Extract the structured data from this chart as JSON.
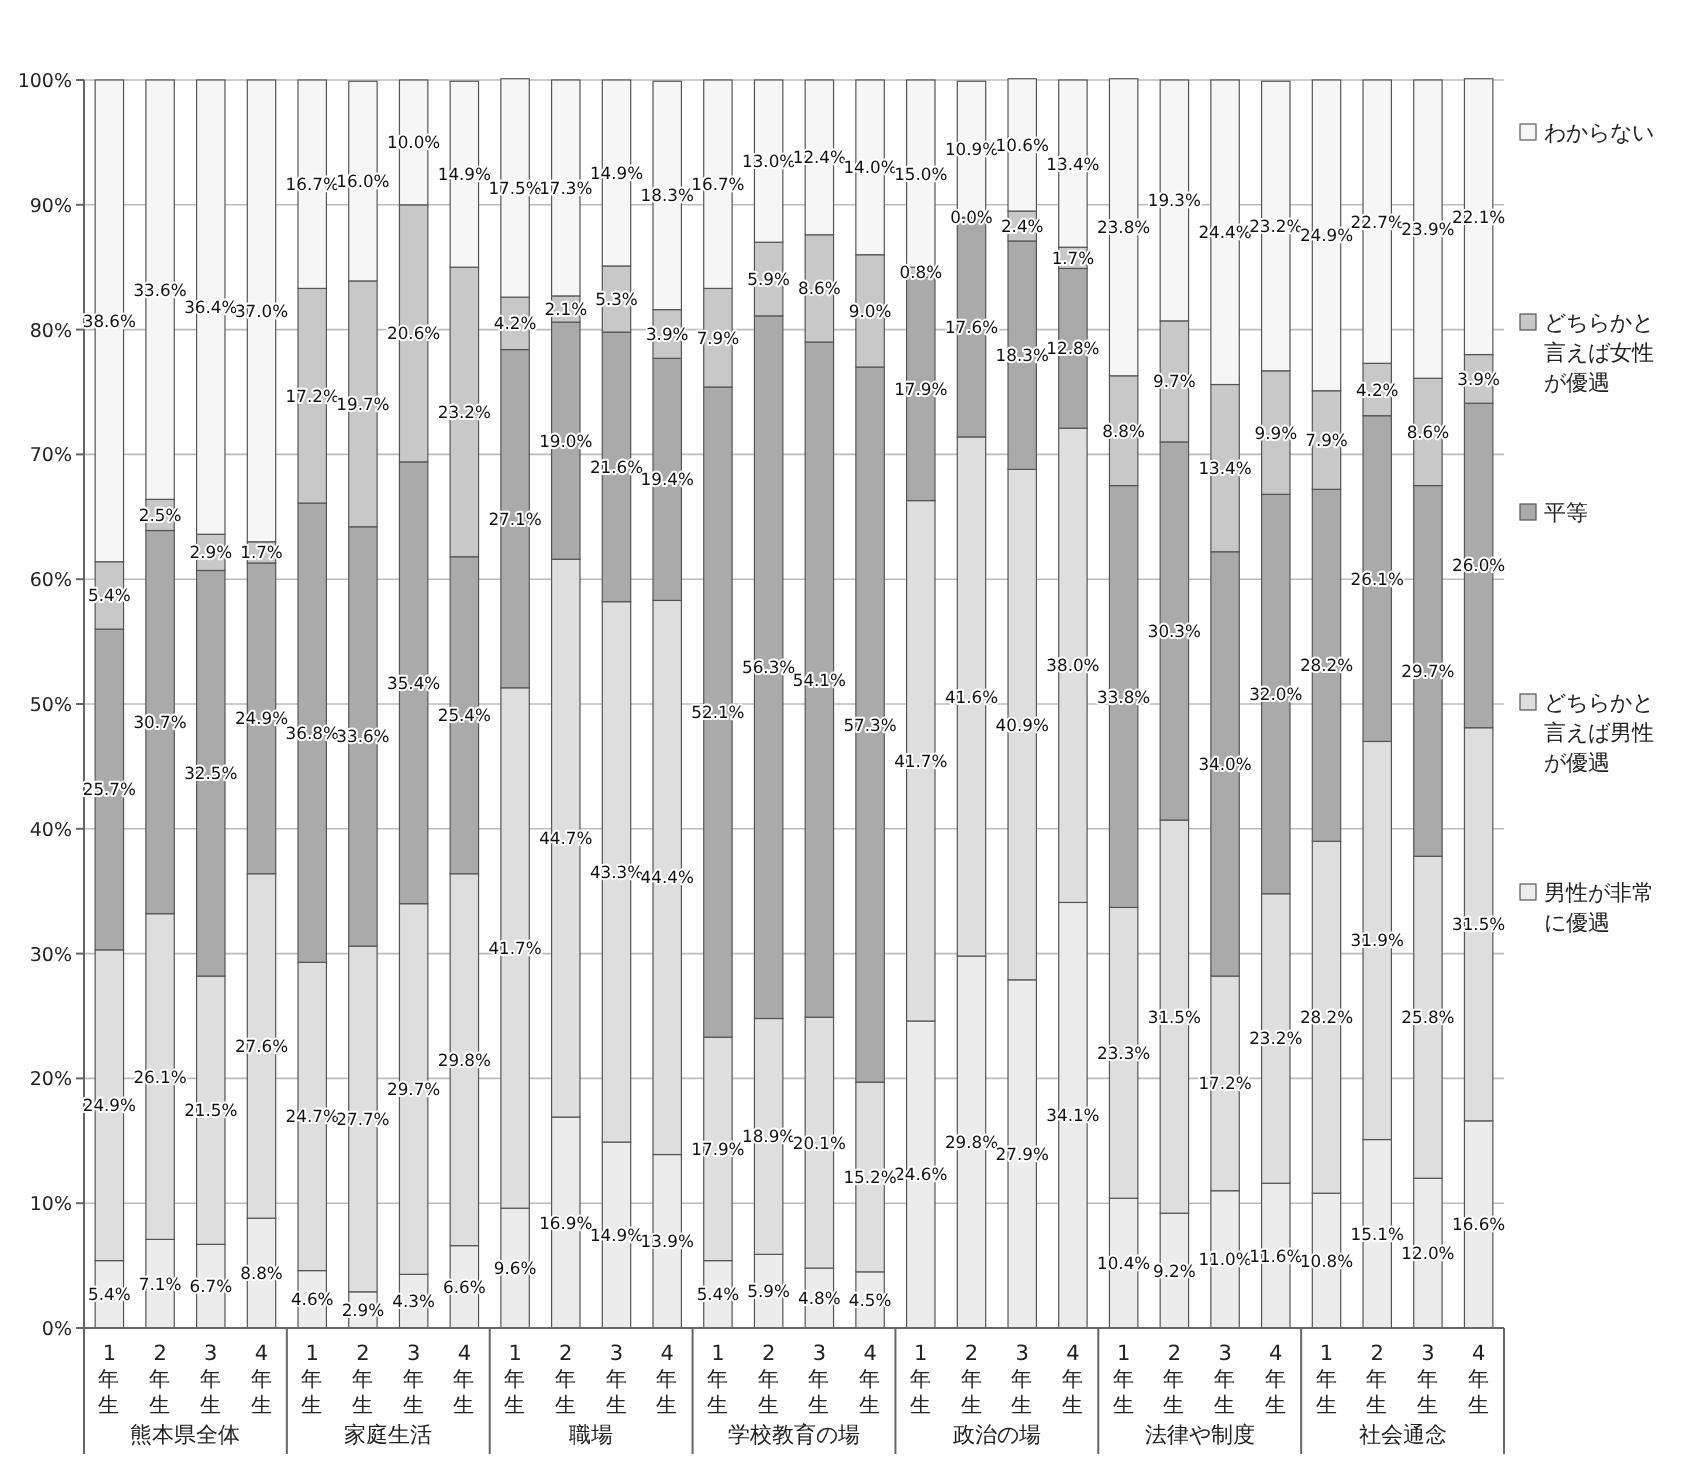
{
  "chart_data": {
    "type": "bar",
    "stacked": true,
    "legend": "right",
    "grid": "y",
    "categories": [
      "1年生",
      "2年生",
      "3年生",
      "4年生",
      "1年生",
      "2年生",
      "3年生",
      "4年生",
      "1年生",
      "2年生",
      "3年生",
      "4年生",
      "1年生",
      "2年生",
      "3年生",
      "4年生",
      "1年生",
      "2年生",
      "3年生",
      "4年生",
      "1年生",
      "2年生",
      "3年生",
      "4年生",
      "1年生",
      "2年生",
      "3年生",
      "4年生"
    ],
    "annotations": [
      "熊本県全体",
      "家庭生活",
      "職場",
      "学校教育の場",
      "政治の場",
      "法律や制度",
      "社会通念"
    ],
    "ylim": [
      0,
      100
    ],
    "yticks": [
      {
        "value": 0,
        "label": "0%"
      },
      {
        "value": 10,
        "label": "10%"
      },
      {
        "value": 20,
        "label": "20%"
      },
      {
        "value": 30,
        "label": "30%"
      },
      {
        "value": 40,
        "label": "40%"
      },
      {
        "value": 50,
        "label": "50%"
      },
      {
        "value": 60,
        "label": "60%"
      },
      {
        "value": 70,
        "label": "70%"
      },
      {
        "value": 80,
        "label": "80%"
      },
      {
        "value": 90,
        "label": "90%"
      },
      {
        "value": 100,
        "label": "100%"
      }
    ],
    "series": [
      {
        "name": "男性が非常に優遇",
        "color": "#ececec",
        "values": [
          5.4,
          7.1,
          6.7,
          8.8,
          4.6,
          2.9,
          4.3,
          6.6,
          9.6,
          16.9,
          14.9,
          13.9,
          5.4,
          5.9,
          4.8,
          4.5,
          24.6,
          29.8,
          27.9,
          34.1,
          10.4,
          9.2,
          11.0,
          11.6,
          10.8,
          15.1,
          12.0,
          16.6
        ],
        "value_labels": [
          "5.4%",
          "7.1%",
          "6.7%",
          "8.8%",
          "4.6%",
          "2.9%",
          "4.3%",
          "6.6%",
          "9.6%",
          "16.9%",
          "14.9%",
          "13.9%",
          "5.4%",
          "5.9%",
          "4.8%",
          "4.5%",
          "24.6%",
          "29.8%",
          "27.9%",
          "34.1%",
          "10.4%",
          "9.2%",
          "11.0%",
          "11.6%",
          "10.8%",
          "15.1%",
          "12.0%",
          "16.6%"
        ]
      },
      {
        "name": "どちらかと言えば男性が優遇",
        "color": "#dedede",
        "values": [
          24.9,
          26.1,
          21.5,
          27.6,
          24.7,
          27.7,
          29.7,
          29.8,
          41.7,
          44.7,
          43.3,
          44.4,
          17.9,
          18.9,
          20.1,
          15.2,
          41.7,
          41.6,
          40.9,
          38.0,
          23.3,
          31.5,
          17.2,
          23.2,
          28.2,
          31.9,
          25.8,
          31.5
        ],
        "value_labels": [
          "24.9%",
          "26.1%",
          "21.5%",
          "27.6%",
          "24.7%",
          "27.7%",
          "29.7%",
          "29.8%",
          "41.7%",
          "44.7%",
          "43.3%",
          "44.4%",
          "17.9%",
          "18.9%",
          "20.1%",
          "15.2%",
          "41.7%",
          "41.6%",
          "40.9%",
          "38.0%",
          "23.3%",
          "31.5%",
          "17.2%",
          "23.2%",
          "28.2%",
          "31.9%",
          "25.8%",
          "31.5%"
        ]
      },
      {
        "name": "平等",
        "color": "#aaaaaa",
        "values": [
          25.7,
          30.7,
          32.5,
          24.9,
          36.8,
          33.6,
          35.4,
          25.4,
          27.1,
          19.0,
          21.6,
          19.4,
          52.1,
          56.3,
          54.1,
          57.3,
          17.9,
          17.6,
          18.3,
          12.8,
          33.8,
          30.3,
          34.0,
          32.0,
          28.2,
          26.1,
          29.7,
          26.0
        ],
        "value_labels": [
          "25.7%",
          "30.7%",
          "32.5%",
          "24.9%",
          "36.8%",
          "33.6%",
          "35.4%",
          "25.4%",
          "27.1%",
          "19.0%",
          "21.6%",
          "19.4%",
          "52.1%",
          "56.3%",
          "54.1%",
          "57.3%",
          "17.9%",
          "17.6%",
          "18.3%",
          "12.8%",
          "33.8%",
          "30.3%",
          "34.0%",
          "32.0%",
          "28.2%",
          "26.1%",
          "29.7%",
          "26.0%"
        ]
      },
      {
        "name": "どちらかと言えば女性が優遇",
        "color": "#c8c8c8",
        "values": [
          5.4,
          2.5,
          2.9,
          1.7,
          17.2,
          19.7,
          20.6,
          23.2,
          4.2,
          2.1,
          5.3,
          3.9,
          7.9,
          5.9,
          8.6,
          9.0,
          0.8,
          0.0,
          2.4,
          1.7,
          8.8,
          9.7,
          13.4,
          9.9,
          7.9,
          4.2,
          8.6,
          3.9
        ],
        "value_labels": [
          "5.4%",
          "2.5%",
          "2.9%",
          "1.7%",
          "17.2%",
          "19.7%",
          "20.6%",
          "23.2%",
          "4.2%",
          "2.1%",
          "5.3%",
          "3.9%",
          "7.9%",
          "5.9%",
          "8.6%",
          "9.0%",
          "0.8%",
          "0.0%",
          "2.4%",
          "1.7%",
          "8.8%",
          "9.7%",
          "13.4%",
          "9.9%",
          "7.9%",
          "4.2%",
          "8.6%",
          "3.9%"
        ]
      },
      {
        "name": "わからない",
        "color": "#f6f6f6",
        "values": [
          38.6,
          33.6,
          36.4,
          37.0,
          16.7,
          16.0,
          10.0,
          14.9,
          17.5,
          17.3,
          14.9,
          18.3,
          16.7,
          13.0,
          12.4,
          14.0,
          15.0,
          10.9,
          10.6,
          13.4,
          23.8,
          19.3,
          24.4,
          23.2,
          24.9,
          22.7,
          23.9,
          22.1
        ],
        "value_labels": [
          "38.6%",
          "33.6%",
          "36.4%",
          "37.0%",
          "16.7%",
          "16.0%",
          "10.0%",
          "14.9%",
          "17.5%",
          "17.3%",
          "14.9%",
          "18.3%",
          "16.7%",
          "13.0%",
          "12.4%",
          "14.0%",
          "15.0%",
          "10.9%",
          "10.6%",
          "13.4%",
          "23.8%",
          "19.3%",
          "24.4%",
          "23.2%",
          "24.9%",
          "22.7%",
          "23.9%",
          "22.1%"
        ]
      }
    ]
  }
}
